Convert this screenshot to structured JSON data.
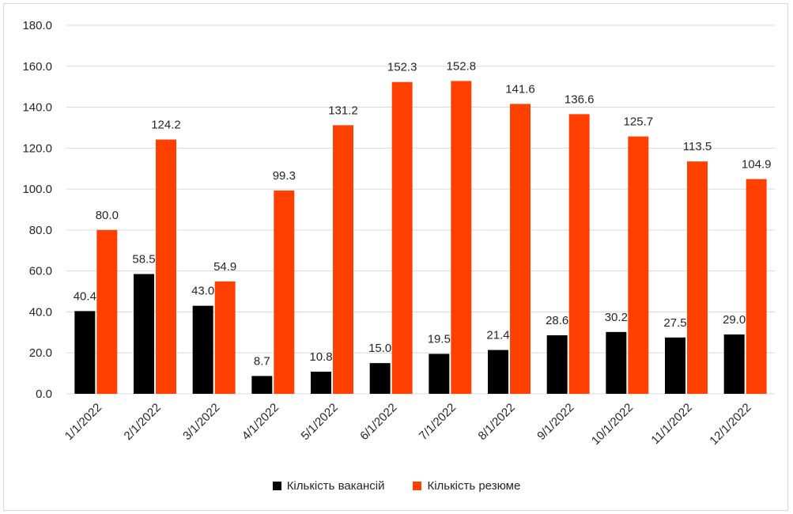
{
  "chart_data": {
    "type": "bar",
    "categories": [
      "1/1/2022",
      "2/1/2022",
      "3/1/2022",
      "4/1/2022",
      "5/1/2022",
      "6/1/2022",
      "7/1/2022",
      "8/1/2022",
      "9/1/2022",
      "10/1/2022",
      "11/1/2022",
      "12/1/2022"
    ],
    "series": [
      {
        "name": "Кількість вакансій",
        "color": "#000000",
        "values": [
          40.4,
          58.5,
          43.0,
          8.7,
          10.8,
          15.0,
          19.5,
          21.4,
          28.6,
          30.2,
          27.5,
          29.0
        ]
      },
      {
        "name": "Кількість резюме",
        "color": "#ff4000",
        "values": [
          80.0,
          124.2,
          54.9,
          99.3,
          131.2,
          152.3,
          152.8,
          141.6,
          136.6,
          125.7,
          113.5,
          104.9
        ]
      }
    ],
    "yticks": [
      "0.0",
      "20.0",
      "40.0",
      "60.0",
      "80.0",
      "100.0",
      "120.0",
      "140.0",
      "160.0",
      "180.0"
    ],
    "ylim": [
      0,
      180
    ],
    "grid": true,
    "legend_position": "bottom",
    "title": "",
    "xlabel": "",
    "ylabel": ""
  }
}
